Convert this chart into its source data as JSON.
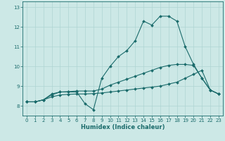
{
  "xlabel": "Humidex (Indice chaleur)",
  "bg_color": "#cce8e6",
  "grid_color": "#afd4d2",
  "line_color": "#1a6b6b",
  "xlim": [
    -0.5,
    23.5
  ],
  "ylim": [
    7.5,
    13.3
  ],
  "yticks": [
    8,
    9,
    10,
    11,
    12,
    13
  ],
  "xticks": [
    0,
    1,
    2,
    3,
    4,
    5,
    6,
    7,
    8,
    9,
    10,
    11,
    12,
    13,
    14,
    15,
    16,
    17,
    18,
    19,
    20,
    21,
    22,
    23
  ],
  "series": [
    [
      8.2,
      8.2,
      8.3,
      8.6,
      8.7,
      8.7,
      8.7,
      8.1,
      7.8,
      9.4,
      10.0,
      10.5,
      10.8,
      11.3,
      12.3,
      12.1,
      12.55,
      12.55,
      12.3,
      11.0,
      10.1,
      9.4,
      8.8,
      8.6
    ],
    [
      8.2,
      8.2,
      8.3,
      8.55,
      8.7,
      8.72,
      8.75,
      8.75,
      8.75,
      8.85,
      9.05,
      9.2,
      9.35,
      9.5,
      9.65,
      9.8,
      9.95,
      10.05,
      10.1,
      10.1,
      10.05,
      9.4,
      8.8,
      8.6
    ],
    [
      8.2,
      8.2,
      8.3,
      8.45,
      8.55,
      8.58,
      8.6,
      8.6,
      8.62,
      8.65,
      8.7,
      8.75,
      8.8,
      8.85,
      8.9,
      8.95,
      9.0,
      9.1,
      9.2,
      9.4,
      9.6,
      9.8,
      8.8,
      8.6
    ]
  ]
}
